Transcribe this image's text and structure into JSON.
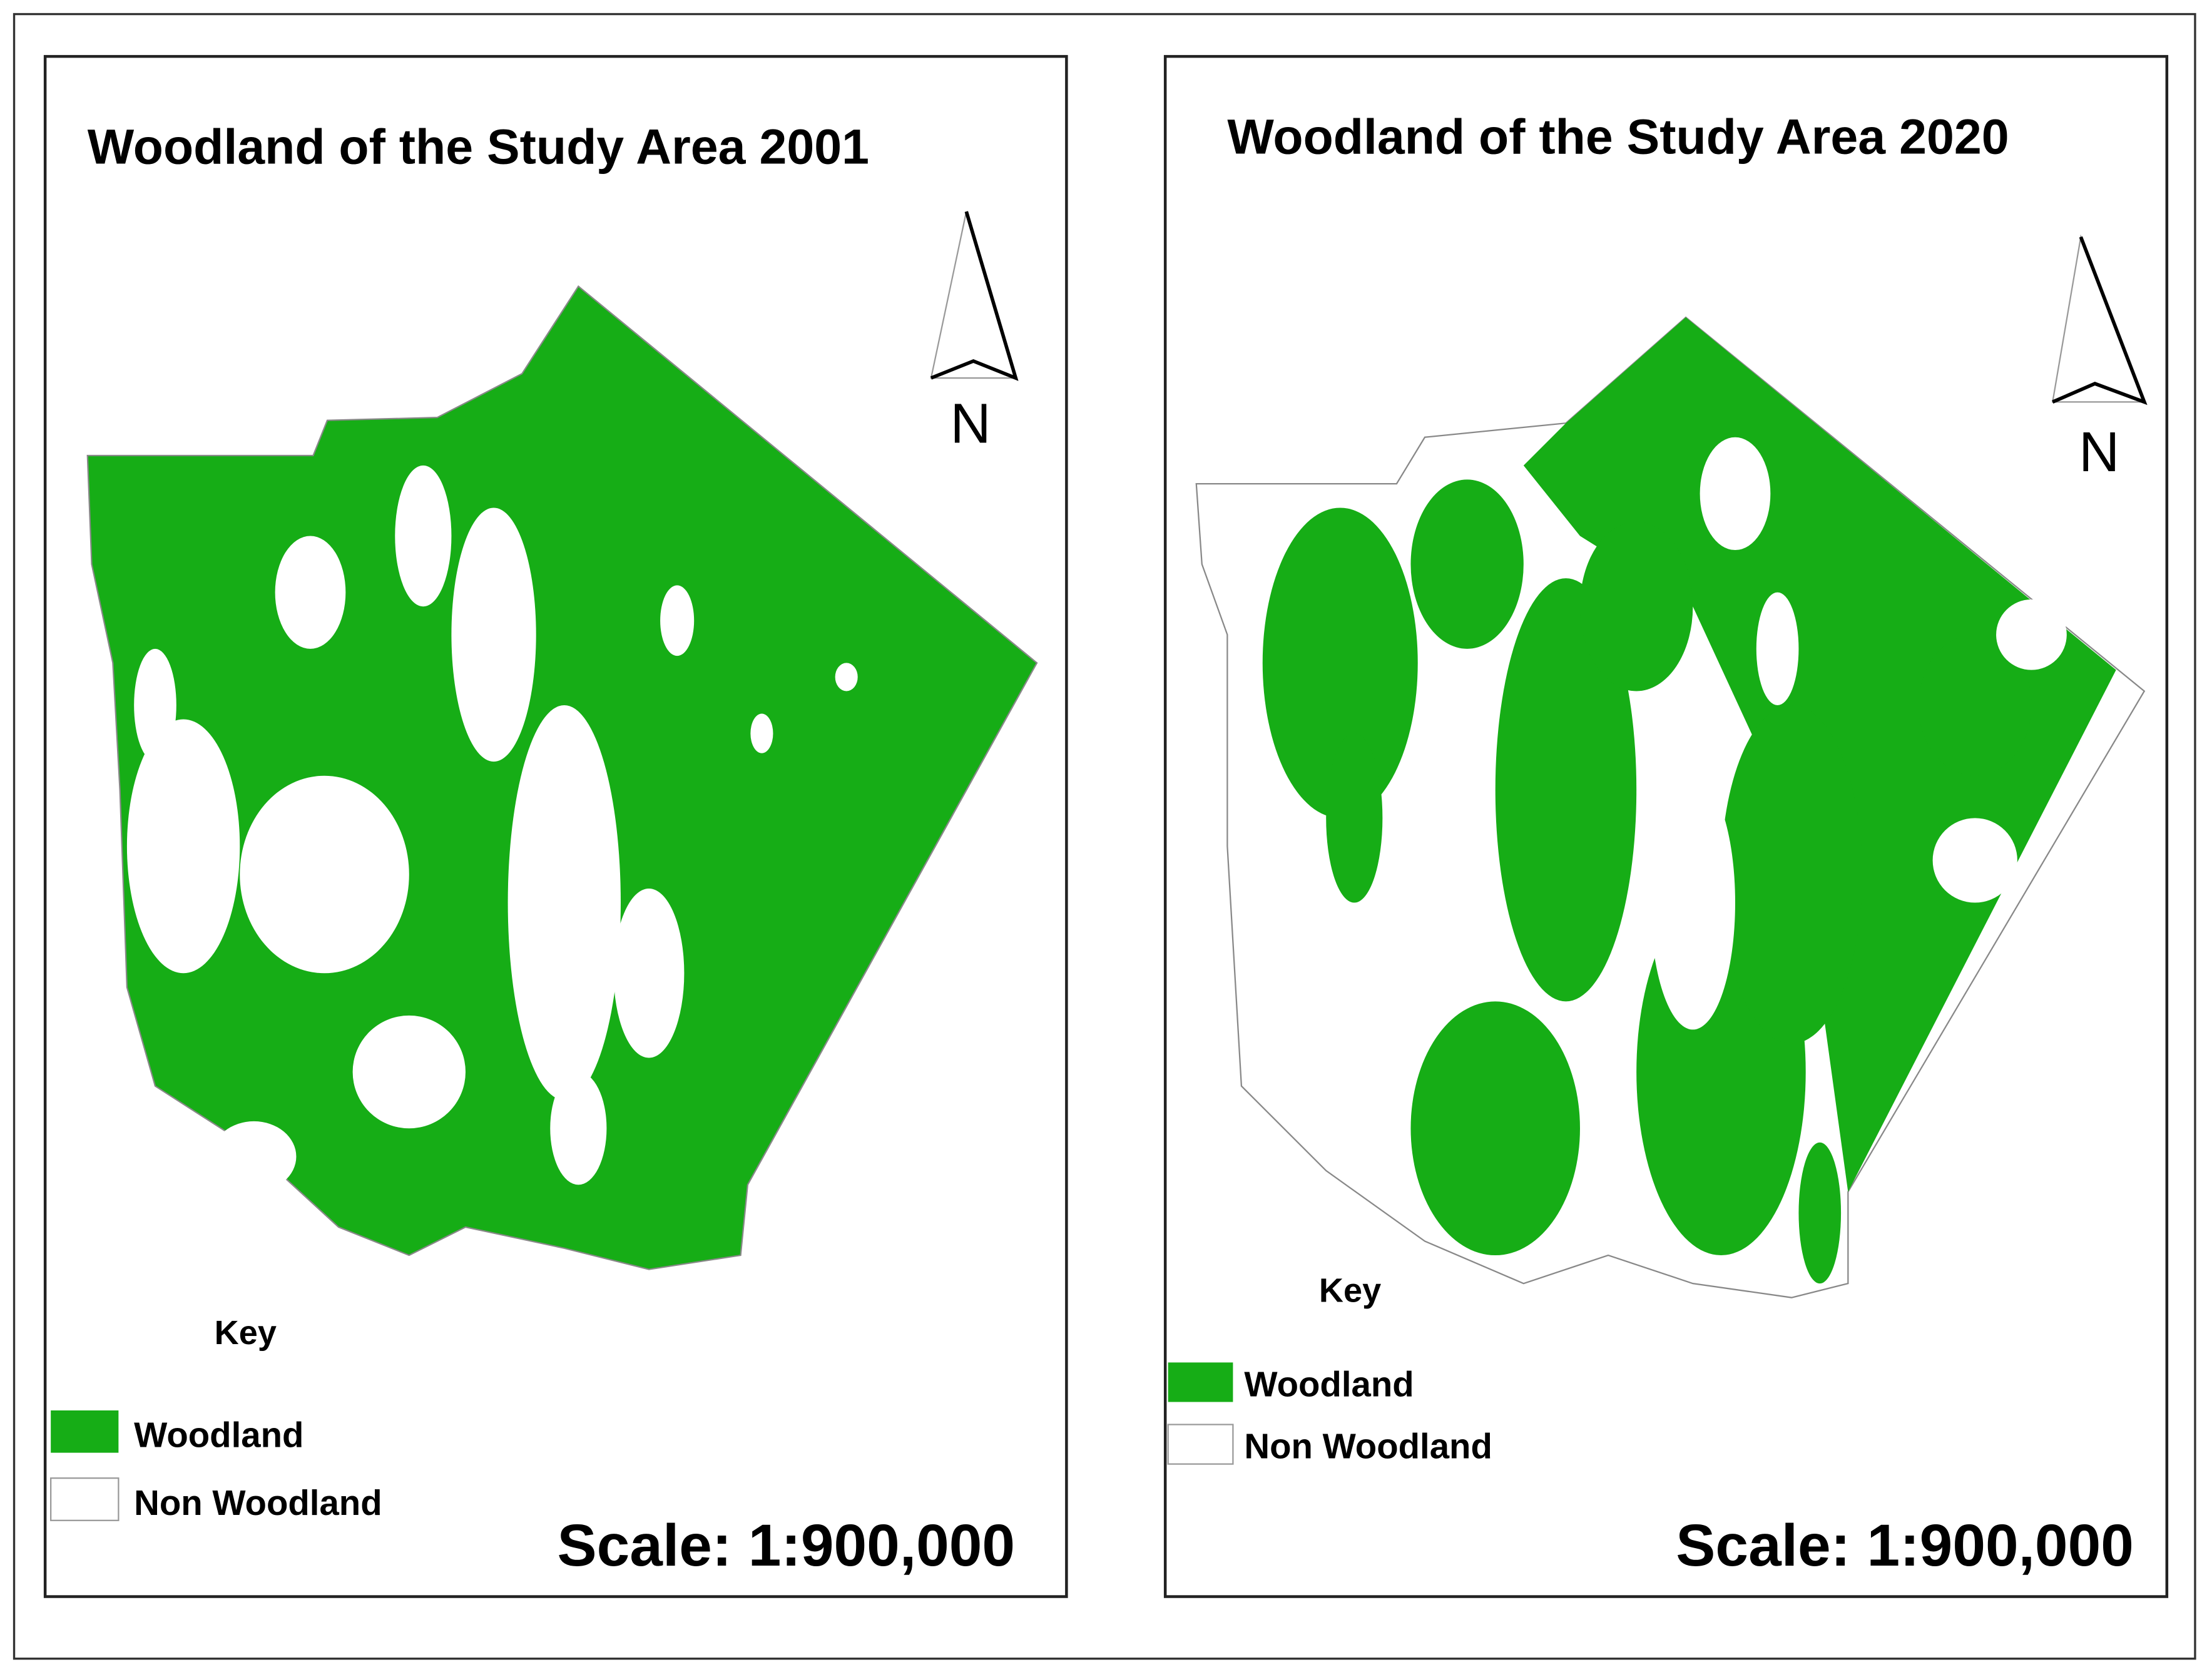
{
  "panels": [
    {
      "title": "Woodland of the Study Area 2001",
      "north": "N",
      "key": "Key",
      "legend": [
        "Woodland",
        "Non Woodland"
      ],
      "scale": "Scale: 1:900,000"
    },
    {
      "title": "Woodland of the Study Area 2020",
      "north": "N",
      "key": "Key",
      "legend": [
        "Woodland",
        "Non Woodland"
      ],
      "scale": "Scale: 1:900,000"
    }
  ]
}
